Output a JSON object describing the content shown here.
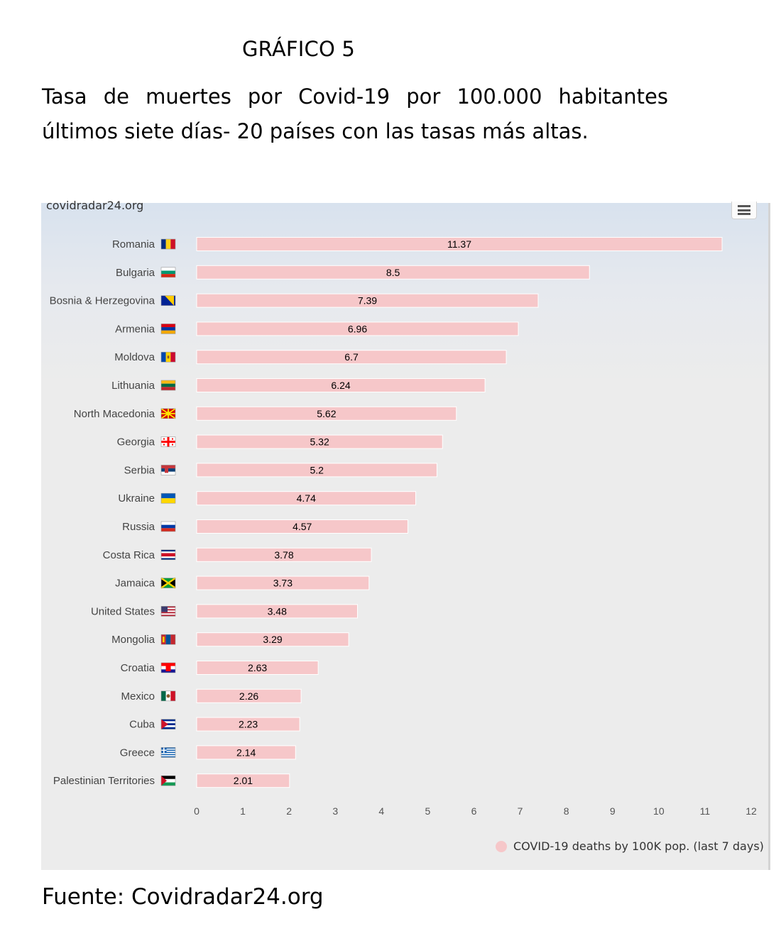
{
  "document": {
    "heading": "GRÁFICO 5",
    "title": "Tasa de muertes por Covid-19 por 100.000 habitantes últimos siete días- 20 países con las tasas más altas.",
    "source": "Fuente: Covidradar24.org"
  },
  "chart_header": {
    "site_credit": "covidradar24.org",
    "menu_icon": "hamburger-menu-icon"
  },
  "colors": {
    "bar": "#f6c7c9",
    "plot_background": "#ececec",
    "header_tint": "#d8e2ee"
  },
  "chart_data": {
    "type": "bar",
    "orientation": "horizontal",
    "categories": [
      "Romania",
      "Bulgaria",
      "Bosnia & Herzegovina",
      "Armenia",
      "Moldova",
      "Lithuania",
      "North Macedonia",
      "Georgia",
      "Serbia",
      "Ukraine",
      "Russia",
      "Costa Rica",
      "Jamaica",
      "United States",
      "Mongolia",
      "Croatia",
      "Mexico",
      "Cuba",
      "Greece",
      "Palestinian Territories"
    ],
    "series": [
      {
        "name": "COVID-19 deaths by 100K pop. (last 7 days)",
        "values": [
          11.37,
          8.5,
          7.39,
          6.96,
          6.7,
          6.24,
          5.62,
          5.32,
          5.2,
          4.74,
          4.57,
          3.78,
          3.73,
          3.48,
          3.29,
          2.63,
          2.26,
          2.23,
          2.14,
          2.01
        ],
        "data_labels": [
          "11.37",
          "8.5",
          "7.39",
          "6.96",
          "6.7",
          "6.24",
          "5.62",
          "5.32",
          "5.2",
          "4.74",
          "4.57",
          "3.78",
          "3.73",
          "3.48",
          "3.29",
          "2.63",
          "2.26",
          "2.23",
          "2.14",
          "2.01"
        ]
      }
    ],
    "x_ticks": [
      "0",
      "1",
      "2",
      "3",
      "4",
      "5",
      "6",
      "7",
      "8",
      "9",
      "10",
      "11",
      "12"
    ],
    "xlim": [
      0,
      12
    ],
    "category_icons": [
      "romania-flag-icon",
      "bulgaria-flag-icon",
      "bosnia-herzegovina-flag-icon",
      "armenia-flag-icon",
      "moldova-flag-icon",
      "lithuania-flag-icon",
      "north-macedonia-flag-icon",
      "georgia-flag-icon",
      "serbia-flag-icon",
      "ukraine-flag-icon",
      "russia-flag-icon",
      "costa-rica-flag-icon",
      "jamaica-flag-icon",
      "united-states-flag-icon",
      "mongolia-flag-icon",
      "croatia-flag-icon",
      "mexico-flag-icon",
      "cuba-flag-icon",
      "greece-flag-icon",
      "palestinian-territories-flag-icon"
    ],
    "legend_position": "bottom-right",
    "grid": false
  }
}
